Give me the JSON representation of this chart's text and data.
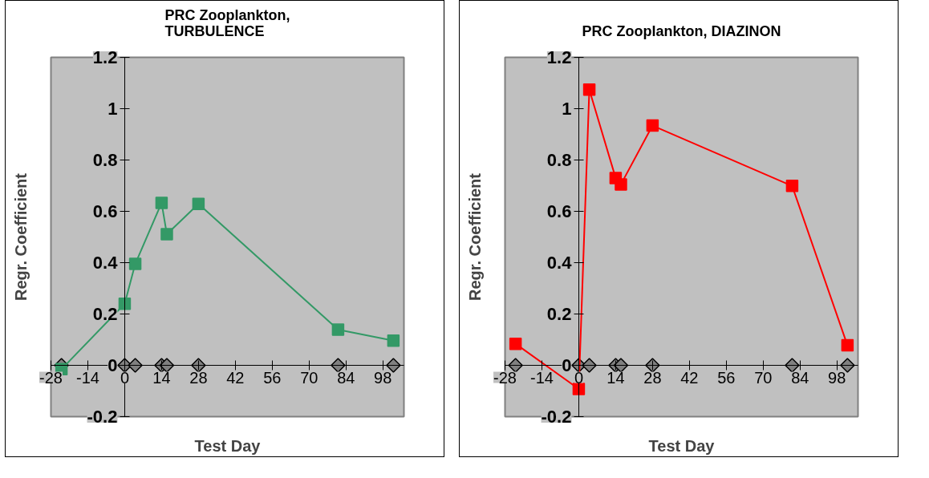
{
  "chart_data": [
    {
      "type": "line",
      "title": "PRC Zooplankton,\nTURBULENCE",
      "xlabel": "Test Day",
      "ylabel": "Regr. Coefficient",
      "x": [
        -24,
        0,
        4,
        14,
        16,
        28,
        81,
        102
      ],
      "series": [
        {
          "color": "#339966",
          "values": [
            -0.015,
            0.24,
            0.395,
            0.633,
            0.511,
            0.629,
            0.139,
            0.096
          ],
          "marker": "square"
        },
        {
          "type": "scatter",
          "color": "#808080",
          "values": [
            0,
            0,
            0,
            0,
            0,
            0,
            0,
            0
          ],
          "marker": "diamond"
        }
      ],
      "xlim": [
        -28,
        106
      ],
      "xticks": [
        -28,
        -14,
        0,
        14,
        28,
        42,
        56,
        70,
        84,
        98
      ],
      "ylim": [
        -0.2,
        1.2
      ],
      "yticks": [
        -0.2,
        0,
        0.2,
        0.4,
        0.6,
        0.8,
        1,
        1.2
      ]
    },
    {
      "type": "line",
      "title": "PRC Zooplankton, DIAZINON",
      "xlabel": "Test Day",
      "ylabel": "Regr. Coefficient",
      "x": [
        -24,
        0,
        4,
        14,
        16,
        28,
        81,
        102
      ],
      "series": [
        {
          "color": "#ff0000",
          "values": [
            0.084,
            -0.092,
            1.074,
            0.73,
            0.705,
            0.934,
            0.699,
            0.078
          ],
          "marker": "square"
        },
        {
          "type": "scatter",
          "color": "#808080",
          "values": [
            0,
            0,
            0,
            0,
            0,
            0,
            0,
            0
          ],
          "marker": "diamond"
        }
      ],
      "xlim": [
        -28,
        106
      ],
      "xticks": [
        -28,
        -14,
        0,
        14,
        28,
        42,
        56,
        70,
        84,
        98
      ],
      "ylim": [
        -0.2,
        1.2
      ],
      "yticks": [
        -0.2,
        0,
        0.2,
        0.4,
        0.6,
        0.8,
        1,
        1.2
      ]
    }
  ]
}
